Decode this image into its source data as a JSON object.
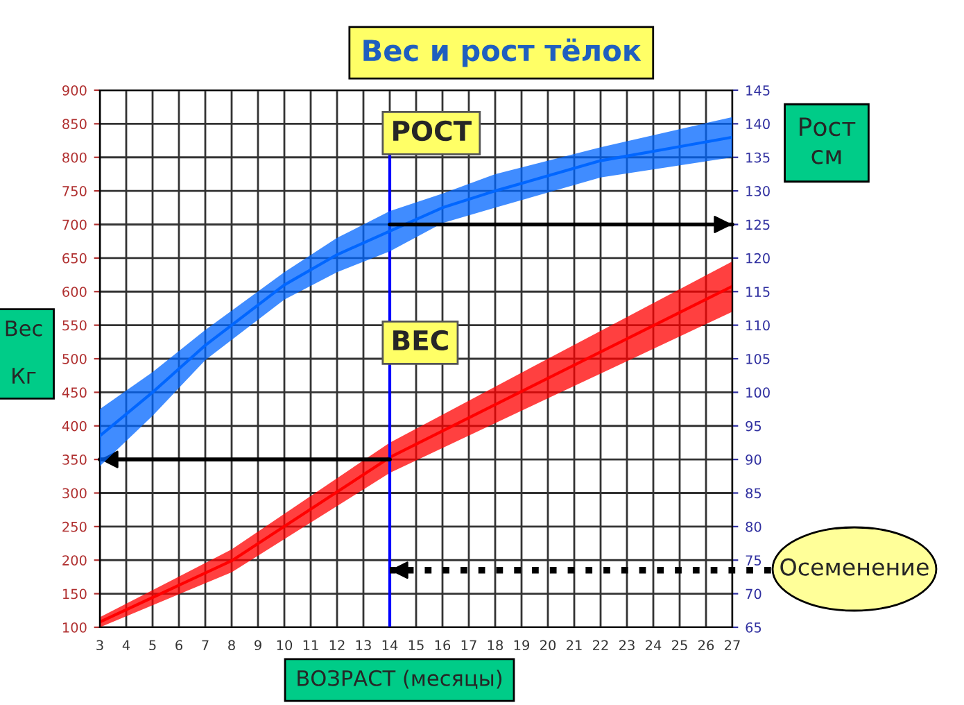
{
  "chart_data": {
    "type": "line",
    "title": "Вес и рост тёлок",
    "xlabel": "ВОЗРАСТ (месяцы)",
    "ylabel": "Вес\n\nКг",
    "y2label": "Рост\nсм",
    "series": [
      {
        "type": "line",
        "axis": "y2",
        "color": "#0066ff",
        "x": [
          3,
          5,
          7,
          10,
          12,
          14,
          16,
          18,
          22,
          27
        ],
        "values": [
          93.5,
          100,
          107,
          116,
          120.5,
          124,
          127.5,
          130,
          134.5,
          138
        ],
        "upper": [
          97.5,
          103,
          109.3,
          117.9,
          123,
          127,
          129.6,
          132.5,
          136.5,
          141
        ],
        "lower": [
          89,
          96.5,
          104.8,
          113.8,
          117.9,
          121,
          125.2,
          127.5,
          132,
          135
        ]
      },
      {
        "type": "line",
        "axis": "y",
        "color": "#ff0000",
        "x": [
          3,
          8,
          14,
          20,
          27
        ],
        "values": [
          108,
          199,
          353,
          471,
          608
        ],
        "upper": [
          115,
          216,
          375,
          500,
          645
        ],
        "lower": [
          100,
          182,
          330,
          441,
          570
        ]
      }
    ],
    "xlim": [
      3,
      27
    ],
    "xticks": [
      3,
      4,
      5,
      6,
      7,
      8,
      9,
      10,
      11,
      12,
      13,
      14,
      15,
      16,
      17,
      18,
      19,
      20,
      21,
      22,
      23,
      24,
      25,
      26,
      27
    ],
    "ylim": [
      100,
      900
    ],
    "yticks": [
      100,
      150,
      200,
      250,
      300,
      350,
      400,
      450,
      500,
      550,
      600,
      650,
      700,
      750,
      800,
      850,
      900
    ],
    "y2lim": [
      65,
      145
    ],
    "y2ticks": [
      65,
      70,
      75,
      80,
      85,
      90,
      95,
      100,
      105,
      110,
      115,
      120,
      125,
      130,
      135,
      140,
      145
    ],
    "ref_lines": [
      {
        "axis": "x",
        "value": 14,
        "color": "#0000ff",
        "line_style": "solid"
      },
      {
        "axis": "y",
        "value": 350,
        "color": "#000000",
        "line_style": "solid"
      },
      {
        "axis": "y2",
        "value": 125,
        "color": "#000000",
        "line_style": "solid"
      },
      {
        "axis": "y2",
        "value": 73.5,
        "color": "#000000",
        "line_style": "dotted"
      }
    ],
    "annotations": [
      "РОСТ",
      "ВЕС",
      "Осеменение"
    ],
    "grid": true,
    "legend": false
  }
}
